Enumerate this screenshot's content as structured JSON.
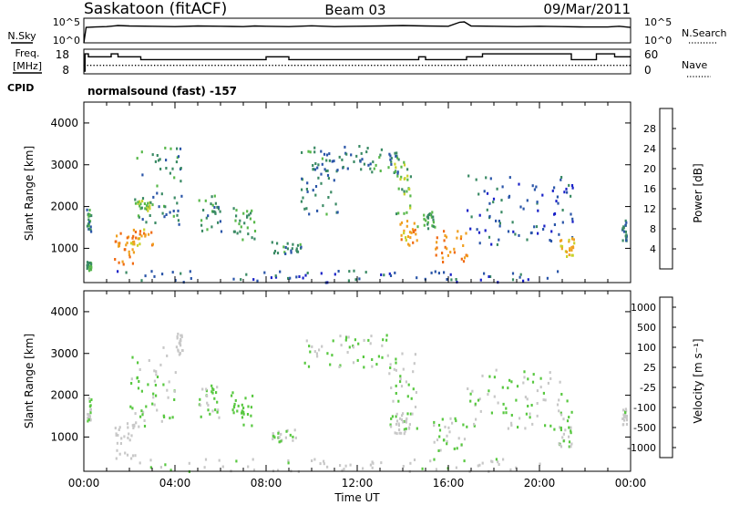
{
  "header": {
    "station": "Saskatoon (fitACF)",
    "beam": "Beam 03",
    "date": "09/Mar/2011"
  },
  "left_labels": {
    "nsky": "N.Sky",
    "freq_line1": "Freq.",
    "freq_line2": "[MHz]",
    "cpid": "CPID"
  },
  "right_labels": {
    "nsearch": "N.Search",
    "nave": "Nave"
  },
  "cpid_text": "normalsound (fast) -157",
  "colors": {
    "axis": "#000000",
    "power_scale": [
      "#1a22c8",
      "#2a55a8",
      "#3a8a64",
      "#58b84a",
      "#c8d22a",
      "#f0a020",
      "#f06a10",
      "#e81a0a"
    ],
    "velocity_scale": [
      "#1a22c8",
      "#2a55a8",
      "#3a8a64",
      "#58c840",
      "#c8c8c8",
      "#f0b020",
      "#f07a10",
      "#e81a0a"
    ]
  },
  "chart_data": [
    {
      "type": "line",
      "name": "noise-panel",
      "x_range": [
        0,
        24
      ],
      "left_axis": {
        "label": "N.Sky",
        "tick_labels": [
          "10^5",
          "10^0"
        ],
        "scale": "log"
      },
      "right_axis": {
        "label": "N.Search",
        "tick_labels": [
          "10^5",
          "10^0"
        ],
        "scale": "log"
      },
      "series": [
        {
          "x": [
            0,
            0.1,
            0.5,
            1.0,
            1.5,
            2.0,
            3.0,
            4.0,
            5.0,
            6.0,
            7.0,
            7.5,
            8.0,
            9.0,
            10.0,
            11.0,
            12.0,
            13.0,
            14.0,
            15.0,
            16.0,
            16.5,
            16.7,
            17.0,
            18.0,
            19.0,
            20.0,
            21.0,
            22.0,
            23.0,
            23.5,
            24.0
          ],
          "y": [
            1,
            2000,
            2500,
            3000,
            5000,
            4000,
            3500,
            3000,
            4000,
            3500,
            3000,
            4000,
            3500,
            3000,
            4500,
            3000,
            3500,
            4000,
            5000,
            4000,
            3500,
            25000,
            30000,
            4000,
            3500,
            3000,
            3500,
            3000,
            2500,
            2500,
            3500,
            2000
          ]
        }
      ]
    },
    {
      "type": "line",
      "name": "frequency-panel",
      "x_range": [
        0,
        24
      ],
      "left_axis": {
        "label": "Freq. [MHz]",
        "tick_labels": [
          "18",
          "8"
        ],
        "range": [
          8,
          18
        ]
      },
      "right_axis": {
        "label": "Nave",
        "tick_labels": [
          "60",
          "0"
        ],
        "range": [
          0,
          60
        ]
      },
      "series": [
        {
          "x": [
            0,
            0.05,
            0.2,
            1.2,
            1.5,
            2.5,
            5.5,
            8.0,
            9.0,
            11.0,
            14.0,
            14.7,
            15.0,
            16.0,
            16.8,
            17.5,
            19.5,
            20.0,
            21.0,
            21.4,
            22.5,
            23.0,
            23.3,
            24.0
          ],
          "y": [
            8,
            17,
            15.5,
            17,
            15.5,
            14,
            14,
            15.5,
            14,
            14,
            14,
            15.5,
            14,
            14,
            15.5,
            17,
            17,
            17,
            17,
            14,
            17,
            17,
            15.5,
            15.5
          ]
        },
        {
          "x": [
            0,
            24
          ],
          "y": [
            18,
            18
          ],
          "style": "dotted",
          "axis": "right"
        }
      ]
    },
    {
      "type": "heatmap",
      "name": "power-panel",
      "x_range": [
        0,
        24
      ],
      "x_tick_labels": [
        "00:00",
        "04:00",
        "08:00",
        "12:00",
        "16:00",
        "20:00",
        "00:00"
      ],
      "ylabel": "Slant Range [km]",
      "y_range": [
        180,
        4500
      ],
      "y_tick_labels": [
        "1000",
        "2000",
        "3000",
        "4000"
      ],
      "colorbar": {
        "label": "Power [dB]",
        "tick_labels": [
          "28",
          "24",
          "20",
          "16",
          "12",
          "8",
          "4"
        ],
        "range": [
          0,
          32
        ]
      },
      "regions": [
        {
          "t": [
            0.1,
            0.3
          ],
          "r": [
            1400,
            2000
          ],
          "v": 9
        },
        {
          "t": [
            0.1,
            0.3
          ],
          "r": [
            500,
            700
          ],
          "v": 12
        },
        {
          "t": [
            1.3,
            2.2
          ],
          "r": [
            500,
            1400
          ],
          "v": 24
        },
        {
          "t": [
            2.0,
            3.0
          ],
          "r": [
            1100,
            1500
          ],
          "v": 22
        },
        {
          "t": [
            2.3,
            4.3
          ],
          "r": [
            1600,
            3500
          ],
          "v": 10
        },
        {
          "t": [
            2.2,
            3.0
          ],
          "r": [
            1800,
            2200
          ],
          "v": 14
        },
        {
          "t": [
            5.0,
            6.0
          ],
          "r": [
            1400,
            2300
          ],
          "v": 11
        },
        {
          "t": [
            6.5,
            7.5
          ],
          "r": [
            1200,
            2000
          ],
          "v": 12
        },
        {
          "t": [
            8.2,
            9.5
          ],
          "r": [
            900,
            1200
          ],
          "v": 10
        },
        {
          "t": [
            9.5,
            11.2
          ],
          "r": [
            1800,
            3400
          ],
          "v": 9
        },
        {
          "t": [
            10.0,
            12.5
          ],
          "r": [
            2900,
            3500
          ],
          "v": 8
        },
        {
          "t": [
            12.5,
            13.8
          ],
          "r": [
            2800,
            3400
          ],
          "v": 10
        },
        {
          "t": [
            13.6,
            14.4
          ],
          "r": [
            1800,
            3100
          ],
          "v": 14
        },
        {
          "t": [
            13.8,
            14.6
          ],
          "r": [
            1100,
            1700
          ],
          "v": 22
        },
        {
          "t": [
            14.6,
            15.4
          ],
          "r": [
            1500,
            1900
          ],
          "v": 12
        },
        {
          "t": [
            15.4,
            16.8
          ],
          "r": [
            700,
            1500
          ],
          "v": 24
        },
        {
          "t": [
            16.8,
            21.5
          ],
          "r": [
            1100,
            2800
          ],
          "v": 6
        },
        {
          "t": [
            20.8,
            21.5
          ],
          "r": [
            800,
            1300
          ],
          "v": 20
        },
        {
          "t": [
            23.6,
            23.8
          ],
          "r": [
            1200,
            1700
          ],
          "v": 8
        },
        {
          "t": [
            1.0,
            21.0
          ],
          "r": [
            200,
            500
          ],
          "v": 6
        }
      ]
    },
    {
      "type": "heatmap",
      "name": "velocity-panel",
      "x_range": [
        0,
        24
      ],
      "x_tick_labels": [
        "00:00",
        "04:00",
        "08:00",
        "12:00",
        "16:00",
        "20:00",
        "00:00"
      ],
      "xlabel": "Time UT",
      "ylabel": "Slant Range [km]",
      "y_range": [
        180,
        4500
      ],
      "y_tick_labels": [
        "1000",
        "2000",
        "3000",
        "4000"
      ],
      "colorbar": {
        "label": "Velocity [m s⁻¹]",
        "tick_labels": [
          "1000",
          "500",
          "100",
          "25",
          "-25",
          "-100",
          "-500",
          "-1000"
        ],
        "range": [
          -1250,
          1250
        ]
      },
      "regions": [
        {
          "t": [
            0.1,
            0.3
          ],
          "r": [
            1400,
            2000
          ],
          "v": 0
        },
        {
          "t": [
            1.3,
            2.3
          ],
          "r": [
            500,
            1400
          ],
          "v": -200
        },
        {
          "t": [
            2.0,
            4.0
          ],
          "r": [
            1200,
            3200
          ],
          "v": 0
        },
        {
          "t": [
            4.0,
            4.3
          ],
          "r": [
            3000,
            3500
          ],
          "v": -100
        },
        {
          "t": [
            5.0,
            5.9
          ],
          "r": [
            1400,
            2300
          ],
          "v": 0
        },
        {
          "t": [
            6.4,
            7.4
          ],
          "r": [
            1300,
            2100
          ],
          "v": 200
        },
        {
          "t": [
            8.2,
            9.3
          ],
          "r": [
            900,
            1200
          ],
          "v": 0
        },
        {
          "t": [
            9.5,
            13.5
          ],
          "r": [
            2700,
            3500
          ],
          "v": 0
        },
        {
          "t": [
            13.3,
            14.6
          ],
          "r": [
            1200,
            3100
          ],
          "v": 0
        },
        {
          "t": [
            13.6,
            14.4
          ],
          "r": [
            1100,
            1600
          ],
          "v": -150
        },
        {
          "t": [
            15.3,
            16.8
          ],
          "r": [
            700,
            1500
          ],
          "v": 0
        },
        {
          "t": [
            16.8,
            21.5
          ],
          "r": [
            1200,
            2700
          ],
          "v": 0
        },
        {
          "t": [
            20.8,
            21.4
          ],
          "r": [
            800,
            1300
          ],
          "v": 0
        },
        {
          "t": [
            23.6,
            23.8
          ],
          "r": [
            1300,
            1700
          ],
          "v": -50
        },
        {
          "t": [
            2.0,
            20.0
          ],
          "r": [
            200,
            500
          ],
          "v": -60
        }
      ]
    }
  ]
}
